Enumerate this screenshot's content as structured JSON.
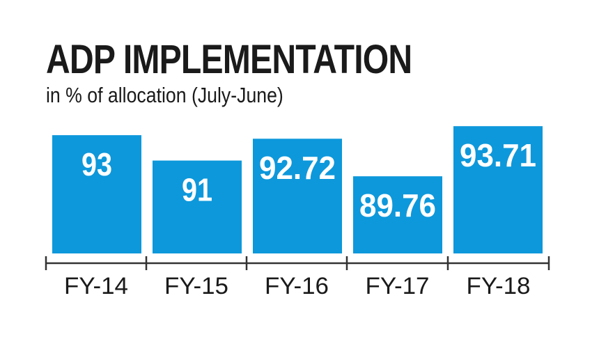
{
  "header": {
    "title": "ADP IMPLEMENTATION",
    "subtitle": "in % of allocation (July-June)"
  },
  "colors": {
    "bar": "#0d98db",
    "axis": "#333333",
    "text": "#1a1a1a"
  },
  "chart_data": {
    "type": "bar",
    "title": "ADP IMPLEMENTATION",
    "subtitle": "in % of allocation (July-June)",
    "categories": [
      "FY-14",
      "FY-15",
      "FY-16",
      "FY-17",
      "FY-18"
    ],
    "values": [
      93,
      91,
      92.72,
      89.76,
      93.71
    ],
    "value_labels": [
      "93",
      "91",
      "92.72",
      "89.76",
      "93.71"
    ],
    "xlabel": "",
    "ylabel": "",
    "grid": false,
    "legend": "none"
  }
}
